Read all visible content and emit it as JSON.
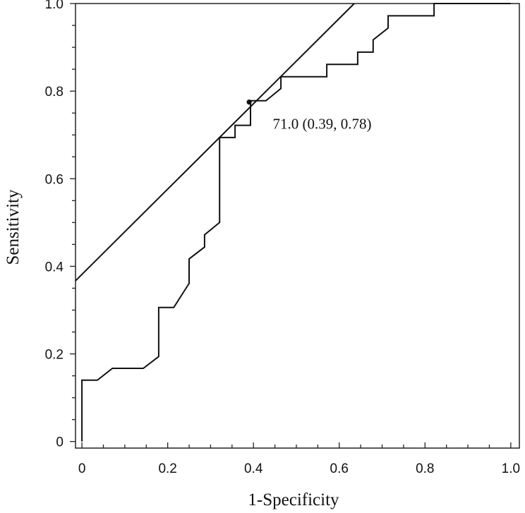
{
  "chart_data": {
    "type": "line",
    "xlabel": "1-Specificity",
    "ylabel": "Sensitivity",
    "xlim": [
      -0.015,
      1.02
    ],
    "ylim": [
      -0.015,
      1.0
    ],
    "x_ticks": [
      0,
      0.2,
      0.4,
      0.6,
      0.8,
      1.0
    ],
    "x_tick_labels": [
      "0",
      "0.2",
      "0.4",
      "0.6",
      "0.8",
      "1.0"
    ],
    "y_ticks": [
      0,
      0.2,
      0.4,
      0.6,
      0.8,
      1.0
    ],
    "y_tick_labels": [
      "0",
      "0.2",
      "0.4",
      "0.6",
      "0.8",
      "1.0"
    ],
    "grid": false,
    "series": [
      {
        "type": "step",
        "points": [
          [
            0,
            0
          ],
          [
            0,
            0.14
          ],
          [
            0.036,
            0.14
          ],
          [
            0.071,
            0.167
          ],
          [
            0.143,
            0.167
          ],
          [
            0.179,
            0.194
          ],
          [
            0.179,
            0.306
          ],
          [
            0.214,
            0.306
          ],
          [
            0.25,
            0.361
          ],
          [
            0.25,
            0.417
          ],
          [
            0.286,
            0.444
          ],
          [
            0.286,
            0.472
          ],
          [
            0.321,
            0.5
          ],
          [
            0.321,
            0.694
          ],
          [
            0.357,
            0.694
          ],
          [
            0.357,
            0.722
          ],
          [
            0.393,
            0.722
          ],
          [
            0.393,
            0.778
          ],
          [
            0.429,
            0.778
          ],
          [
            0.464,
            0.806
          ],
          [
            0.464,
            0.833
          ],
          [
            0.571,
            0.833
          ],
          [
            0.571,
            0.861
          ],
          [
            0.643,
            0.861
          ],
          [
            0.643,
            0.889
          ],
          [
            0.679,
            0.889
          ],
          [
            0.679,
            0.917
          ],
          [
            0.714,
            0.944
          ],
          [
            0.714,
            0.972
          ],
          [
            0.821,
            0.972
          ],
          [
            0.821,
            1.0
          ],
          [
            1.0,
            1.0
          ]
        ]
      },
      {
        "type": "tangent-line",
        "points": [
          [
            -0.015,
            0.367
          ],
          [
            0.635,
            1.0
          ]
        ]
      }
    ],
    "highlight_point": {
      "x": 0.39,
      "y": 0.775
    },
    "annotation": {
      "text": "71.0 (0.39, 0.78)",
      "x": 0.445,
      "y": 0.725
    }
  }
}
